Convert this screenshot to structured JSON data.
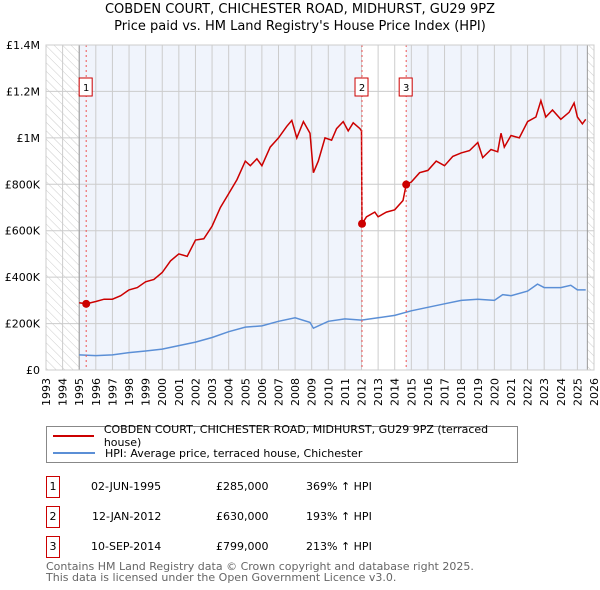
{
  "chart_data": {
    "type": "line",
    "title": "COBDEN COURT, CHICHESTER ROAD, MIDHURST, GU29 9PZ",
    "subtitle": "Price paid vs. HM Land Registry's House Price Index (HPI)",
    "xlim": [
      1993,
      2026
    ],
    "ylim": [
      0,
      1400000
    ],
    "yticks": [
      {
        "v": 0,
        "l": "£0"
      },
      {
        "v": 200000,
        "l": "£200K"
      },
      {
        "v": 400000,
        "l": "£400K"
      },
      {
        "v": 600000,
        "l": "£600K"
      },
      {
        "v": 800000,
        "l": "£800K"
      },
      {
        "v": 1000000,
        "l": "£1M"
      },
      {
        "v": 1200000,
        "l": "£1.2M"
      },
      {
        "v": 1400000,
        "l": "£1.4M"
      }
    ],
    "xticks": [
      "1993",
      "1994",
      "1995",
      "1996",
      "1997",
      "1998",
      "1999",
      "2000",
      "2001",
      "2002",
      "2003",
      "2004",
      "2005",
      "2006",
      "2007",
      "2008",
      "2009",
      "2010",
      "2011",
      "2012",
      "2013",
      "2014",
      "2015",
      "2016",
      "2017",
      "2018",
      "2019",
      "2020",
      "2021",
      "2022",
      "2023",
      "2024",
      "2025",
      "2026"
    ],
    "series": [
      {
        "name": "COBDEN COURT, CHICHESTER ROAD, MIDHURST, GU29 9PZ (terraced house)",
        "color": "#cc0000",
        "x": [
          1995.0,
          1995.42,
          1996,
          1996.5,
          1997,
          1997.5,
          1998,
          1998.5,
          1999,
          1999.5,
          2000,
          2000.5,
          2001,
          2001.5,
          2002,
          2002.5,
          2003,
          2003.5,
          2004,
          2004.5,
          2005,
          2005.3,
          2005.7,
          2006,
          2006.5,
          2007,
          2007.5,
          2007.8,
          2008.1,
          2008.5,
          2008.9,
          2009.1,
          2009.4,
          2009.8,
          2010.2,
          2010.5,
          2010.9,
          2011.2,
          2011.5,
          2011.9,
          2012.0,
          2012.03,
          2012.3,
          2012.8,
          2013.0,
          2013.5,
          2014.0,
          2014.5,
          2014.69,
          2015,
          2015.5,
          2016,
          2016.5,
          2017,
          2017.5,
          2018,
          2018.5,
          2019,
          2019.3,
          2019.8,
          2020.2,
          2020.4,
          2020.6,
          2021,
          2021.5,
          2022,
          2022.5,
          2022.8,
          2023.1,
          2023.5,
          2024,
          2024.5,
          2024.8,
          2025.0,
          2025.3,
          2025.5
        ],
        "y": [
          290000,
          285000,
          295000,
          305000,
          305000,
          320000,
          345000,
          355000,
          380000,
          390000,
          420000,
          470000,
          500000,
          490000,
          560000,
          565000,
          620000,
          700000,
          760000,
          820000,
          900000,
          880000,
          910000,
          880000,
          960000,
          1000000,
          1050000,
          1075000,
          1000000,
          1070000,
          1020000,
          850000,
          900000,
          1000000,
          990000,
          1040000,
          1070000,
          1030000,
          1065000,
          1040000,
          1030000,
          630000,
          660000,
          680000,
          660000,
          680000,
          690000,
          730000,
          799000,
          810000,
          850000,
          860000,
          900000,
          880000,
          920000,
          935000,
          945000,
          980000,
          915000,
          950000,
          940000,
          1020000,
          960000,
          1010000,
          1000000,
          1070000,
          1090000,
          1160000,
          1090000,
          1120000,
          1080000,
          1110000,
          1150000,
          1090000,
          1060000,
          1080000
        ]
      },
      {
        "name": "HPI: Average price, terraced house, Chichester",
        "color": "#5b8fd6",
        "x": [
          1995,
          1996,
          1997,
          1998,
          1999,
          2000,
          2001,
          2002,
          2003,
          2004,
          2005,
          2006,
          2007,
          2008,
          2008.9,
          2009.1,
          2010,
          2011,
          2012,
          2013,
          2014,
          2015,
          2016,
          2017,
          2018,
          2019,
          2020,
          2020.5,
          2021,
          2022,
          2022.6,
          2023,
          2024,
          2024.6,
          2025,
          2025.5
        ],
        "y": [
          65000,
          62000,
          65000,
          75000,
          82000,
          90000,
          105000,
          120000,
          140000,
          165000,
          185000,
          190000,
          210000,
          225000,
          205000,
          180000,
          210000,
          220000,
          215000,
          225000,
          235000,
          255000,
          270000,
          285000,
          300000,
          305000,
          300000,
          325000,
          320000,
          340000,
          370000,
          355000,
          355000,
          365000,
          345000,
          345000
        ]
      }
    ],
    "sales": [
      {
        "n": "1",
        "x": 1995.42,
        "y": 285000,
        "date": "02-JUN-1995",
        "price": "£285,000",
        "hpi": "369% ↑ HPI"
      },
      {
        "n": "2",
        "x": 2012.03,
        "y": 630000,
        "date": "12-JAN-2012",
        "price": "£630,000",
        "hpi": "193% ↑ HPI"
      },
      {
        "n": "3",
        "x": 2014.69,
        "y": 799000,
        "date": "10-SEP-2014",
        "price": "£799,000",
        "hpi": "213% ↑ HPI"
      }
    ],
    "data_start": 1995.0,
    "data_end": 2025.6
  },
  "footer": [
    "Contains HM Land Registry data © Crown copyright and database right 2025.",
    "This data is licensed under the Open Government Licence v3.0."
  ]
}
